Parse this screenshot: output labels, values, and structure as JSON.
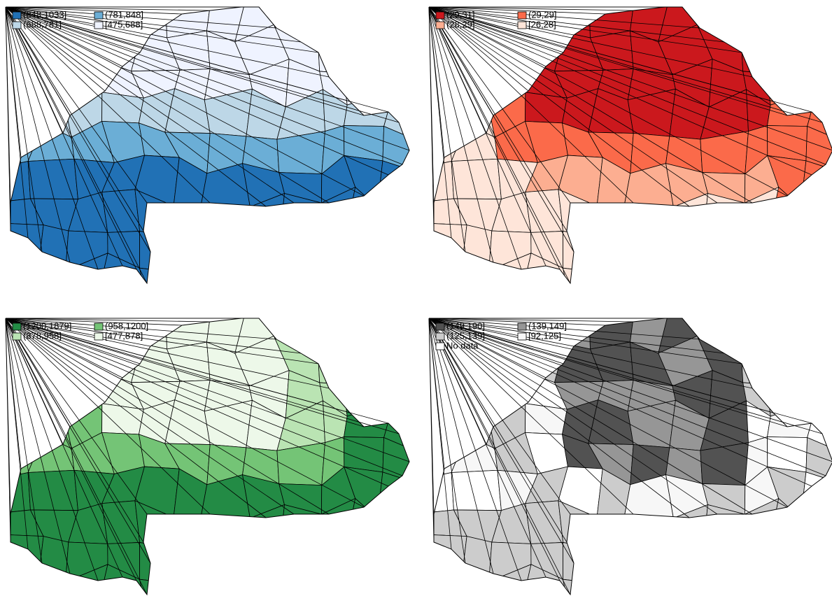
{
  "maps": [
    {
      "legend": [
        {
          "label": "(848,1033]",
          "color": "#2171b5"
        },
        {
          "label": "(781,848]",
          "color": "#6baed6"
        },
        {
          "label": "(688,781]",
          "color": "#bdd7e7"
        },
        {
          "label": "[475,688]",
          "color": "#eff3ff"
        }
      ]
    },
    {
      "legend": [
        {
          "label": "(29,31]",
          "color": "#cb181d"
        },
        {
          "label": "(29,29]",
          "color": "#fb6a4a"
        },
        {
          "label": "(28,29]",
          "color": "#fcae91"
        },
        {
          "label": "[26,28]",
          "color": "#fee5d9"
        }
      ]
    },
    {
      "legend": [
        {
          "label": "(1200,1879]",
          "color": "#238b45"
        },
        {
          "label": "(958,1200]",
          "color": "#74c476"
        },
        {
          "label": "(878,958]",
          "color": "#bae4b3"
        },
        {
          "label": "[477,878]",
          "color": "#edf8e9"
        }
      ]
    },
    {
      "legend": [
        {
          "label": "(149,190]",
          "color": "#525252"
        },
        {
          "label": "(139,149]",
          "color": "#969696"
        },
        {
          "label": "(125,139]",
          "color": "#cccccc"
        },
        {
          "label": "[92,125]",
          "color": "#f7f7f7"
        },
        {
          "label": "No data",
          "color": "#ffffff"
        }
      ]
    }
  ]
}
